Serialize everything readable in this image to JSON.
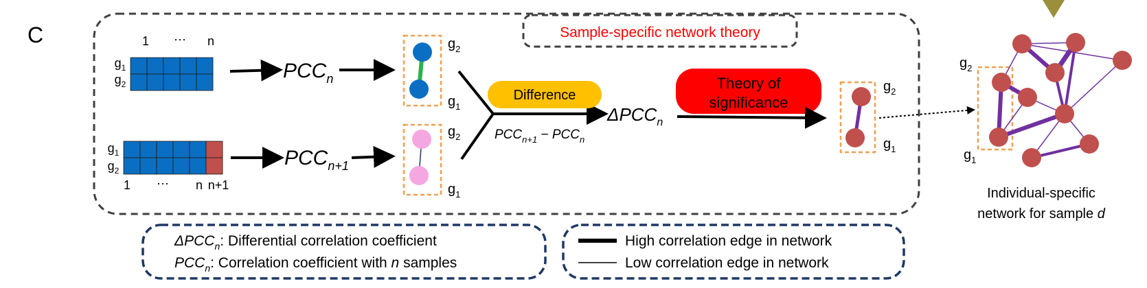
{
  "panel_label": "C",
  "theory_box": {
    "title": "Sample-specific network theory"
  },
  "matrix_top": {
    "col_first": "1",
    "col_dots": "⋯",
    "col_last": "n",
    "row1": "g",
    "row1_sub": "1",
    "row2": "g",
    "row2_sub": "2"
  },
  "matrix_bottom": {
    "col_first": "1",
    "col_dots": "⋯",
    "col_last": "n",
    "col_extra": "n+1",
    "row1": "g",
    "row1_sub": "1",
    "row2": "g",
    "row2_sub": "2"
  },
  "pcc_n": {
    "base": "PCC",
    "sub": "n"
  },
  "pcc_n1": {
    "base": "PCC",
    "sub": "n+1"
  },
  "gene_pair_top": {
    "top": "g",
    "top_sub": "2",
    "bottom": "g",
    "bottom_sub": "1"
  },
  "gene_pair_bottom": {
    "top": "g",
    "top_sub": "2",
    "bottom": "g",
    "bottom_sub": "1"
  },
  "difference": {
    "label": "Difference",
    "formula_a": "PCC",
    "formula_a_sub": "n+1",
    "formula_minus": " − ",
    "formula_b": "PCC",
    "formula_b_sub": "n"
  },
  "delta_pcc": {
    "base": "ΔPCC",
    "sub": "n"
  },
  "significance": {
    "line1": "Theory of",
    "line2": "significance"
  },
  "gene_pair_result": {
    "top": "g",
    "top_sub": "2",
    "bottom": "g",
    "bottom_sub": "1"
  },
  "network": {
    "top_label": "g",
    "top_label_sub": "2",
    "bottom_label": "g",
    "bottom_label_sub": "1",
    "caption_line1": "Individual-specific",
    "caption_line2": "network for sample ",
    "caption_italic": "d"
  },
  "legend_left": {
    "line1_term": "ΔPCC",
    "line1_sub": "n",
    "line1_text": ": Differential correlation coefficient",
    "line2_term": "PCC",
    "line2_sub": "n",
    "line2_text_a": ": Correlation coefficient with ",
    "line2_italic": "n",
    "line2_text_b": " samples"
  },
  "legend_right": {
    "high": "High correlation edge in network",
    "low": "Low correlation edge in network"
  },
  "colors": {
    "matrix_blue": "#0a6fc2",
    "matrix_red": "#c0504d",
    "node_blue": "#0a6fc2",
    "node_pink": "#f4a7e0",
    "edge_green": "#2bb24c",
    "edge_purple": "#7030a0",
    "node_red": "#c0504d",
    "orange_dash": "#f0a050",
    "difference_fill": "#ffc000",
    "significance_fill": "#ff0000",
    "title_red": "#ff0000",
    "legend_border": "#1f3864",
    "triangle": "#9c8f3c"
  }
}
